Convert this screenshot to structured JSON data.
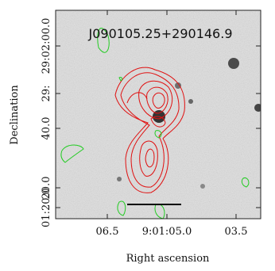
{
  "figure": {
    "title": "J090105.25+290146.9",
    "x_label": "Right ascension",
    "y_label": "Declination",
    "x_ticks": [
      "06.5",
      "9:01:05.0",
      "03.5"
    ],
    "y_ticks": [
      "29:02:00.0",
      "29:",
      "40.0",
      "20.0",
      "01:20.0"
    ]
  }
}
